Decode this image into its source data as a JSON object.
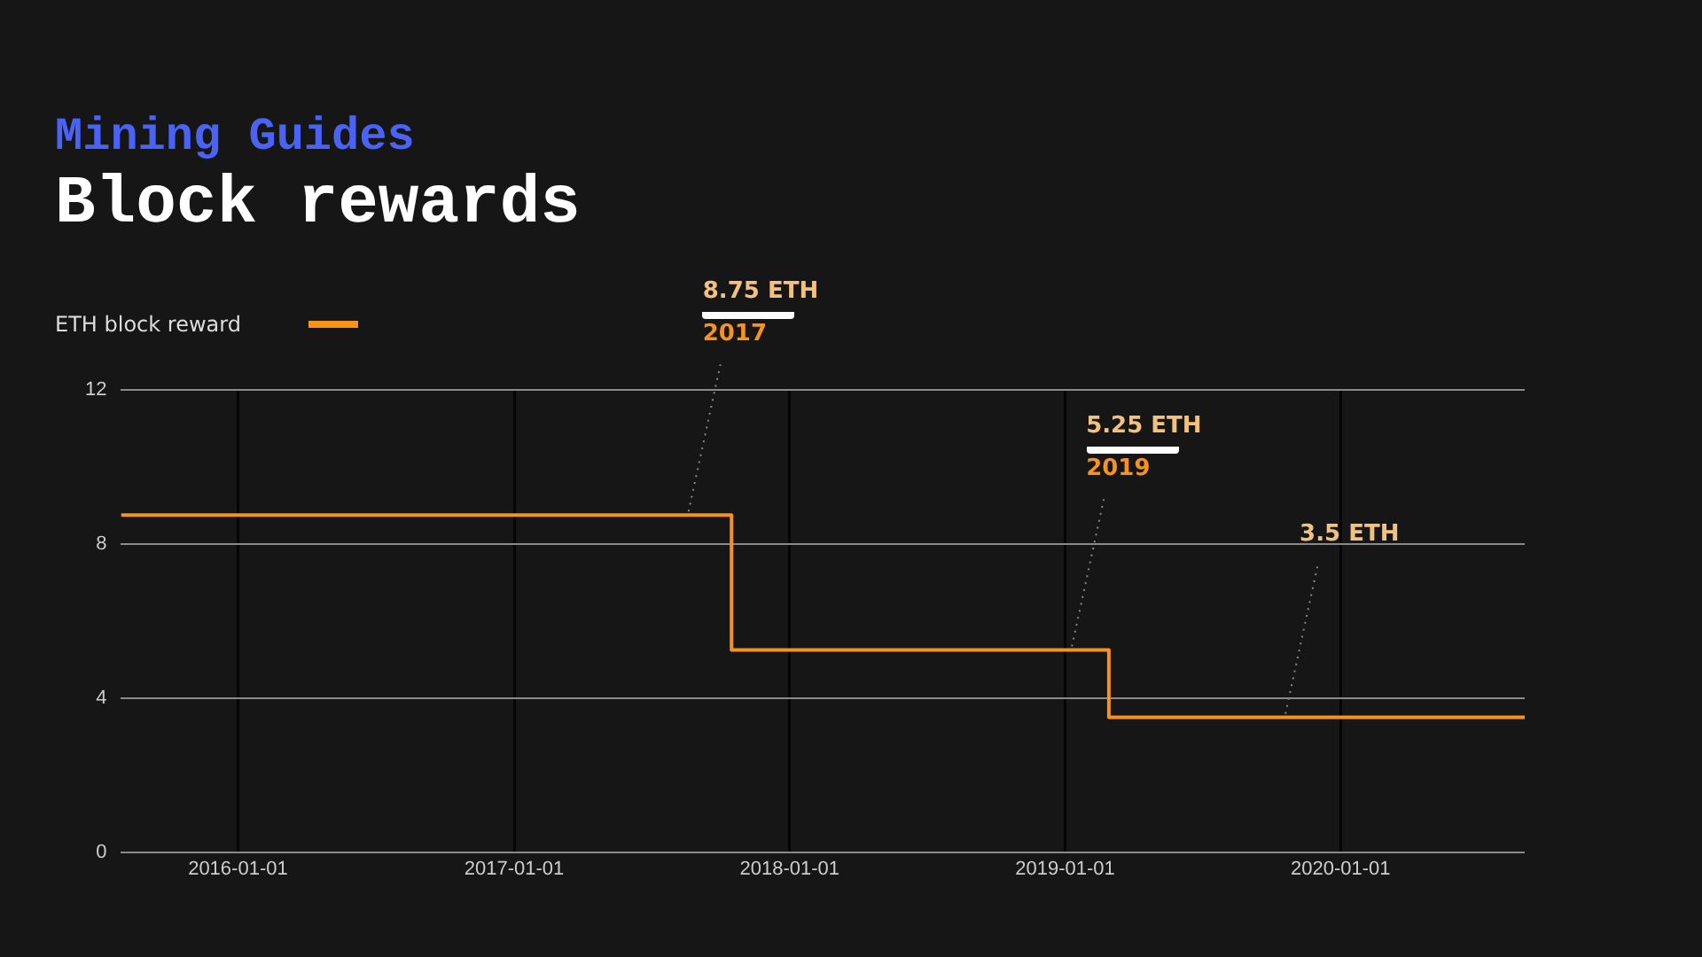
{
  "chart_data": {
    "type": "step",
    "subtitle": "Mining Guides",
    "title": "Block rewards",
    "x": [
      "2015-07-30",
      "2017-10-16",
      "2019-02-28",
      "2020-09-01"
    ],
    "series": [
      {
        "name": "ETH block reward",
        "color": "#f7931a",
        "values": [
          8.75,
          5.25,
          3.5,
          3.5
        ]
      }
    ],
    "xlim": [
      "2015-07-30",
      "2020-09-01"
    ],
    "xticks": [
      "2016-01-01",
      "2017-01-01",
      "2018-01-01",
      "2019-01-01",
      "2020-01-01"
    ],
    "ylim": [
      0,
      12
    ],
    "yticks": [
      0,
      4,
      8,
      12
    ],
    "grid": true,
    "legend": "top left",
    "marker": "none",
    "annotations": [
      {
        "text": "8.75 ETH\n2017",
        "x": "2017-08-20",
        "y": 8.75
      },
      {
        "text": "5.25 ETH\n2019",
        "x": "2019-01-10",
        "y": 5.25
      },
      {
        "text": "3.5 ETH",
        "x": "2019-10-20",
        "y": 3.5
      }
    ]
  }
}
